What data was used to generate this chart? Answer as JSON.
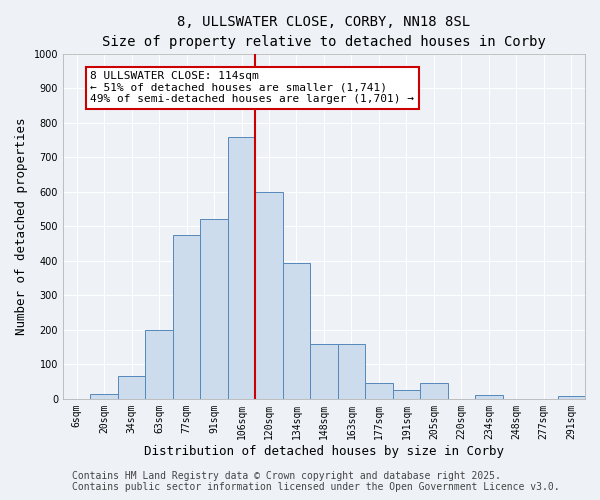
{
  "title": "8, ULLSWATER CLOSE, CORBY, NN18 8SL",
  "subtitle": "Size of property relative to detached houses in Corby",
  "xlabel": "Distribution of detached houses by size in Corby",
  "ylabel": "Number of detached properties",
  "bin_labels": [
    "6sqm",
    "20sqm",
    "34sqm",
    "63sqm",
    "77sqm",
    "91sqm",
    "106sqm",
    "120sqm",
    "134sqm",
    "148sqm",
    "163sqm",
    "177sqm",
    "191sqm",
    "205sqm",
    "220sqm",
    "234sqm",
    "248sqm",
    "277sqm",
    "291sqm"
  ],
  "bar_heights": [
    0,
    15,
    65,
    200,
    475,
    520,
    760,
    600,
    395,
    160,
    160,
    45,
    25,
    45,
    0,
    10,
    0,
    0,
    8
  ],
  "bar_color": "#ccdcec",
  "bar_edge_color": "#5588bb",
  "vline_x_index": 7,
  "vline_color": "#cc0000",
  "annotation_text": "8 ULLSWATER CLOSE: 114sqm\n← 51% of detached houses are smaller (1,741)\n49% of semi-detached houses are larger (1,701) →",
  "annotation_box_color": "#ffffff",
  "annotation_box_edge_color": "#cc0000",
  "ylim": [
    0,
    1000
  ],
  "yticks": [
    0,
    100,
    200,
    300,
    400,
    500,
    600,
    700,
    800,
    900,
    1000
  ],
  "footer_line1": "Contains HM Land Registry data © Crown copyright and database right 2025.",
  "footer_line2": "Contains public sector information licensed under the Open Government Licence v3.0.",
  "background_color": "#eef2f7",
  "grid_color": "#ffffff",
  "title_fontsize": 10,
  "axis_fontsize": 9,
  "tick_fontsize": 7,
  "footer_fontsize": 7,
  "annotation_fontsize": 8
}
